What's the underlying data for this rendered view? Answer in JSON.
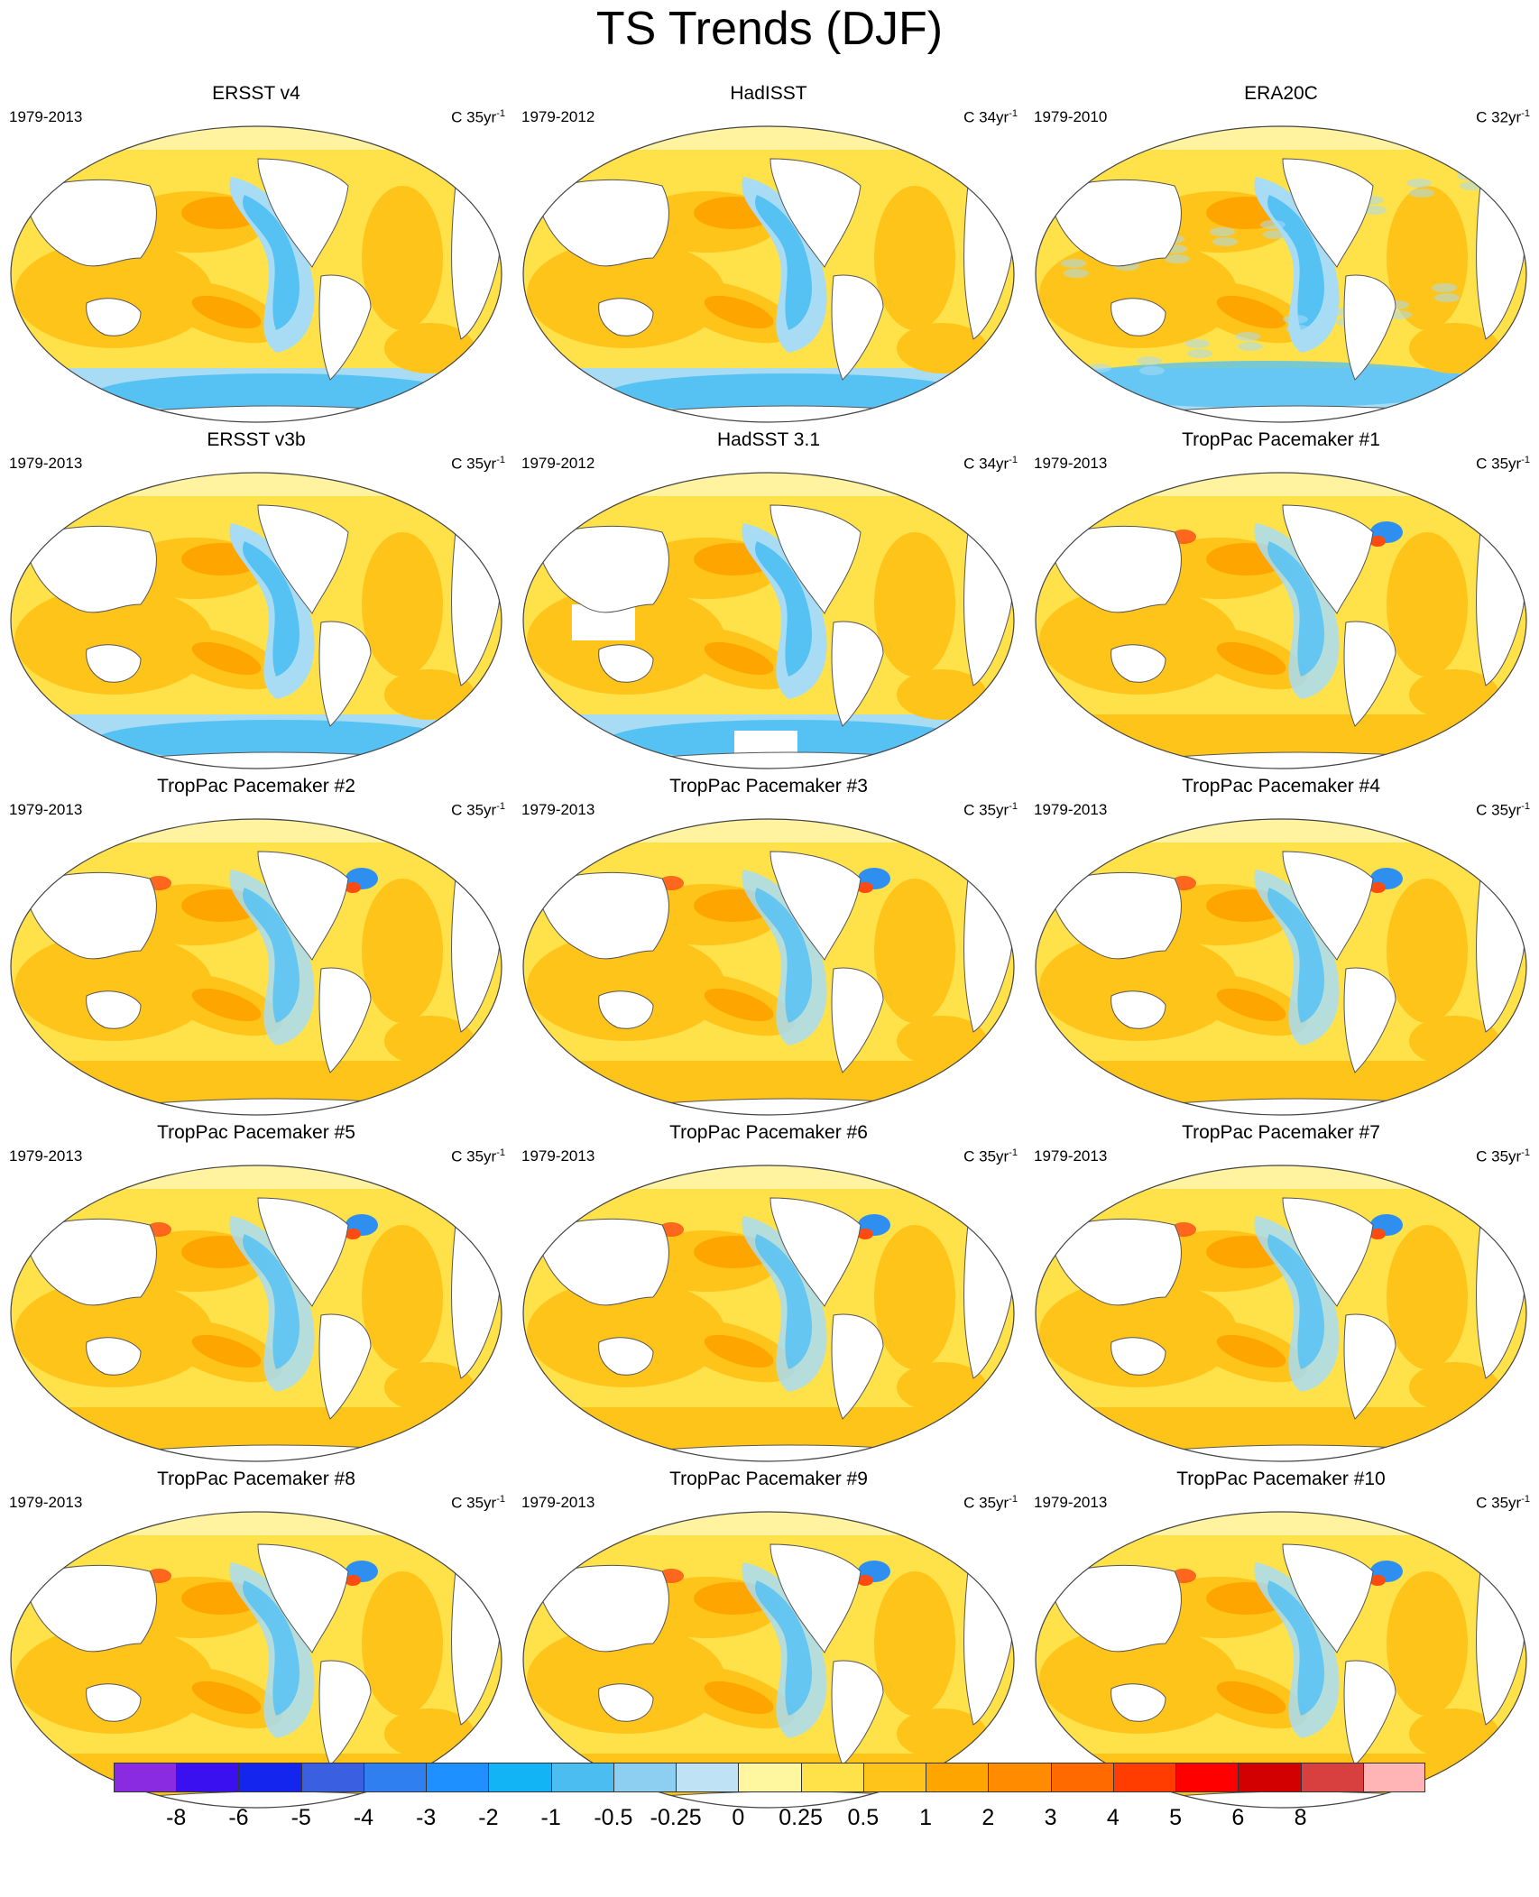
{
  "title": "TS Trends (DJF)",
  "panels": [
    {
      "title": "ERSST v4",
      "years": "1979-2013",
      "units": "C 35yr",
      "units_sup": "-1",
      "pattern": "obs"
    },
    {
      "title": "HadISST",
      "years": "1979-2012",
      "units": "C 34yr",
      "units_sup": "-1",
      "pattern": "obs"
    },
    {
      "title": "ERA20C",
      "years": "1979-2010",
      "units": "C 32yr",
      "units_sup": "-1",
      "pattern": "reanalysis"
    },
    {
      "title": "ERSST v3b",
      "years": "1979-2013",
      "units": "C 35yr",
      "units_sup": "-1",
      "pattern": "obs"
    },
    {
      "title": "HadSST 3.1",
      "years": "1979-2012",
      "units": "C 34yr",
      "units_sup": "-1",
      "pattern": "sparse"
    },
    {
      "title": "TropPac Pacemaker #1",
      "years": "1979-2013",
      "units": "C 35yr",
      "units_sup": "-1",
      "pattern": "pacemaker"
    },
    {
      "title": "TropPac Pacemaker #2",
      "years": "1979-2013",
      "units": "C 35yr",
      "units_sup": "-1",
      "pattern": "pacemaker"
    },
    {
      "title": "TropPac Pacemaker #3",
      "years": "1979-2013",
      "units": "C 35yr",
      "units_sup": "-1",
      "pattern": "pacemaker"
    },
    {
      "title": "TropPac Pacemaker #4",
      "years": "1979-2013",
      "units": "C 35yr",
      "units_sup": "-1",
      "pattern": "pacemaker"
    },
    {
      "title": "TropPac Pacemaker #5",
      "years": "1979-2013",
      "units": "C 35yr",
      "units_sup": "-1",
      "pattern": "pacemaker"
    },
    {
      "title": "TropPac Pacemaker #6",
      "years": "1979-2013",
      "units": "C 35yr",
      "units_sup": "-1",
      "pattern": "pacemaker"
    },
    {
      "title": "TropPac Pacemaker #7",
      "years": "1979-2013",
      "units": "C 35yr",
      "units_sup": "-1",
      "pattern": "pacemaker"
    },
    {
      "title": "TropPac Pacemaker #8",
      "years": "1979-2013",
      "units": "C 35yr",
      "units_sup": "-1",
      "pattern": "pacemaker"
    },
    {
      "title": "TropPac Pacemaker #9",
      "years": "1979-2013",
      "units": "C 35yr",
      "units_sup": "-1",
      "pattern": "pacemaker"
    },
    {
      "title": "TropPac Pacemaker #10",
      "years": "1979-2013",
      "units": "C 35yr",
      "units_sup": "-1",
      "pattern": "pacemaker"
    }
  ],
  "colorbar": {
    "colors": [
      "#8a2be2",
      "#3a10f0",
      "#1426ee",
      "#3a5fe0",
      "#2f7ff0",
      "#1e90ff",
      "#12b4f5",
      "#4cbdf0",
      "#8ccff0",
      "#bfe3f5",
      "#fff7a0",
      "#ffe14a",
      "#ffc41a",
      "#ffa500",
      "#ff8c00",
      "#ff6a00",
      "#ff3d00",
      "#ff0000",
      "#d20000",
      "#d84040",
      "#ffb5b5"
    ],
    "labels": [
      "-8",
      "-6",
      "-5",
      "-4",
      "-3",
      "-2",
      "-1",
      "-0.5",
      "-0.25",
      "0",
      "0.25",
      "0.5",
      "1",
      "2",
      "3",
      "4",
      "5",
      "6",
      "8"
    ]
  }
}
